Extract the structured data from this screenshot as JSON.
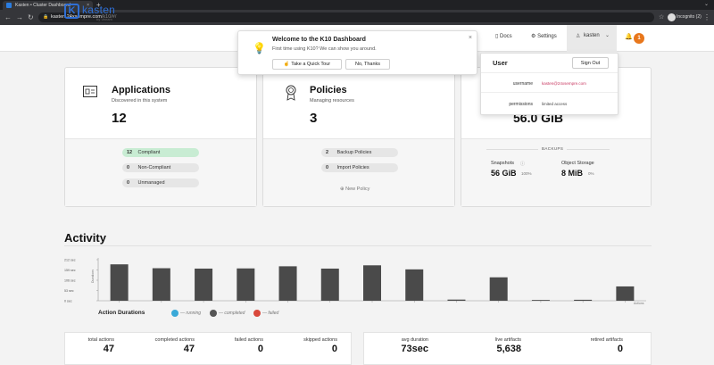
{
  "browser": {
    "tab_title": "Kasten • Cluster Dashboard",
    "tab_close": "×",
    "new_tab": "+",
    "url_host": "kasten.24xsempre.com",
    "url_path": "/k10/#/",
    "incognito_label": "Incognito (2)",
    "icons": [
      "back-icon",
      "forward-icon",
      "reload-icon",
      "lock-icon",
      "star-icon",
      "incognito-icon",
      "more-icon"
    ]
  },
  "header": {
    "logo_mark": "K",
    "logo_name": "kasten",
    "logo_by": "by Veeam",
    "docs": "Docs",
    "settings": "Settings",
    "user": "kasten",
    "notifications": "1"
  },
  "welcome": {
    "title": "Welcome to the K10 Dashboard",
    "subtitle": "First time using K10? We can show you around.",
    "tour_button": "Take a Quick Tour",
    "dismiss_button": "No, Thanks",
    "close": "×"
  },
  "user_dropdown": {
    "title": "User",
    "signout": "Sign Out",
    "username_label": "username",
    "username_value": "kasten@24xsempre.com",
    "permissions_label": "permissions",
    "permissions_value": "limited access"
  },
  "applications": {
    "title": "Applications",
    "subtitle": "Discovered in this system",
    "count": "12",
    "pills": [
      {
        "count": "12",
        "label": "Compliant"
      },
      {
        "count": "0",
        "label": "Non-Compliant"
      },
      {
        "count": "0",
        "label": "Unmanaged"
      }
    ]
  },
  "policies": {
    "title": "Policies",
    "subtitle": "Managing resources",
    "count": "3",
    "pills": [
      {
        "count": "2",
        "label": "Backup Policies"
      },
      {
        "count": "0",
        "label": "Import Policies"
      }
    ],
    "new_policy": "New Policy"
  },
  "data_card": {
    "total": "56.0 GiB",
    "backups_label": "BACKUPS",
    "snapshots_label": "Snapshots",
    "snapshots_value": "56 GiB",
    "snapshots_pct": "100%",
    "object_storage_label": "Object Storage",
    "object_storage_value": "8 MiB",
    "object_storage_pct": "0%"
  },
  "activity": {
    "title": "Activity",
    "durations_title": "Action Durations",
    "legend": [
      {
        "label": "— running",
        "color": "#3aa9d8"
      },
      {
        "label": "— completed",
        "color": "#555555"
      },
      {
        "label": "— failed",
        "color": "#d9483b"
      }
    ]
  },
  "chart_data": {
    "type": "bar",
    "ylabel": "Durations",
    "xlabel": "Actions",
    "yticks": [
      "212 sec",
      "159 sec",
      "106 sec",
      "53 sec",
      "0 sec"
    ],
    "ylim": [
      0,
      212
    ],
    "values": [
      188,
      168,
      166,
      167,
      178,
      166,
      183,
      162,
      6,
      121,
      4,
      5,
      74
    ],
    "bar_color": "#4a4a4a",
    "grid": false
  },
  "stats_left": [
    {
      "label": "total actions",
      "value": "47"
    },
    {
      "label": "completed actions",
      "value": "47"
    },
    {
      "label": "failed actions",
      "value": "0"
    },
    {
      "label": "skipped actions",
      "value": "0"
    }
  ],
  "stats_right": [
    {
      "label": "avg duration",
      "value": "73sec"
    },
    {
      "label": "live artifacts",
      "value": "5,638"
    },
    {
      "label": "retired artifacts",
      "value": "0"
    }
  ]
}
